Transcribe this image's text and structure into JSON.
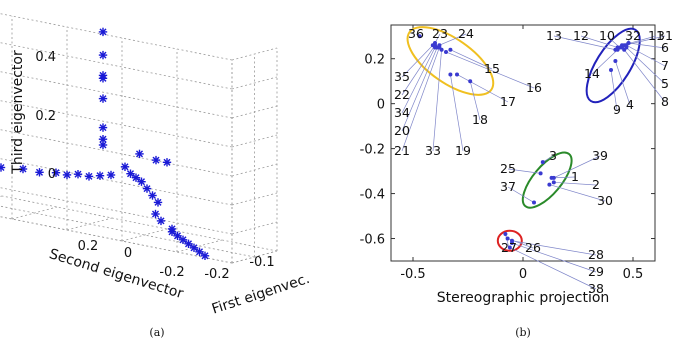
{
  "chart_data": [
    {
      "panel": "(a)",
      "type": "scatter",
      "marker": "star",
      "marker_color": "#1a1ad6",
      "axes": {
        "z_label": "Third eigenvector",
        "y_label": "Second eigenvector",
        "x_label": "First eigenvec.",
        "z_ticks": [
          "0.4",
          "0.2",
          "0"
        ],
        "y_ticks": [
          "0.2",
          "0",
          "-0.2"
        ],
        "x_ticks": [
          "-0.2",
          "-0.1"
        ]
      },
      "grid": true,
      "points": [
        {
          "x": -0.12,
          "y": 0.1,
          "z": 0.45
        },
        {
          "x": -0.12,
          "y": 0.1,
          "z": 0.37
        },
        {
          "x": -0.12,
          "y": 0.1,
          "z": 0.3
        },
        {
          "x": -0.12,
          "y": 0.1,
          "z": 0.29
        },
        {
          "x": -0.12,
          "y": 0.1,
          "z": 0.22
        },
        {
          "x": -0.12,
          "y": 0.1,
          "z": 0.12
        },
        {
          "x": -0.12,
          "y": 0.1,
          "z": 0.08
        },
        {
          "x": -0.12,
          "y": 0.1,
          "z": 0.06
        },
        {
          "x": -0.1,
          "y": 0.05,
          "z": 0.04
        },
        {
          "x": -0.1,
          "y": 0.02,
          "z": 0.03
        },
        {
          "x": -0.1,
          "y": 0.0,
          "z": 0.03
        },
        {
          "x": -0.12,
          "y": 0.06,
          "z": 0.0
        },
        {
          "x": -0.12,
          "y": 0.05,
          "z": -0.02
        },
        {
          "x": -0.12,
          "y": 0.04,
          "z": -0.03
        },
        {
          "x": -0.12,
          "y": 0.03,
          "z": -0.04
        },
        {
          "x": -0.12,
          "y": 0.02,
          "z": -0.06
        },
        {
          "x": -0.12,
          "y": 0.01,
          "z": -0.08
        },
        {
          "x": -0.12,
          "y": 0.0,
          "z": -0.1
        },
        {
          "x": -0.2,
          "y": 0.3,
          "z": -0.05
        },
        {
          "x": -0.2,
          "y": 0.25,
          "z": -0.04
        },
        {
          "x": -0.2,
          "y": 0.22,
          "z": -0.03
        },
        {
          "x": -0.2,
          "y": 0.18,
          "z": -0.02
        },
        {
          "x": -0.2,
          "y": 0.15,
          "z": -0.02
        },
        {
          "x": -0.2,
          "y": 0.12,
          "z": -0.01
        },
        {
          "x": -0.2,
          "y": 0.1,
          "z": -0.01
        },
        {
          "x": -0.2,
          "y": 0.08,
          "z": 0.0
        },
        {
          "x": -0.2,
          "y": 0.06,
          "z": 0.0
        },
        {
          "x": -0.2,
          "y": 0.04,
          "z": 0.01
        },
        {
          "x": -0.2,
          "y": 0.02,
          "z": 0.02
        },
        {
          "x": -0.15,
          "y": -0.02,
          "z": -0.12
        },
        {
          "x": -0.15,
          "y": -0.03,
          "z": -0.14
        },
        {
          "x": -0.15,
          "y": -0.05,
          "z": -0.16
        },
        {
          "x": -0.15,
          "y": -0.05,
          "z": -0.17
        },
        {
          "x": -0.15,
          "y": -0.06,
          "z": -0.18
        },
        {
          "x": -0.15,
          "y": -0.07,
          "z": -0.19
        },
        {
          "x": -0.15,
          "y": -0.08,
          "z": -0.2
        },
        {
          "x": -0.15,
          "y": -0.09,
          "z": -0.21
        },
        {
          "x": -0.15,
          "y": -0.1,
          "z": -0.22
        },
        {
          "x": -0.15,
          "y": -0.11,
          "z": -0.23
        }
      ],
      "caption": "(a)"
    },
    {
      "panel": "(b)",
      "type": "scatter",
      "xlabel": "Stereographic projection",
      "ylabel": "",
      "xlim": [
        -0.6,
        0.6
      ],
      "ylim": [
        -0.7,
        0.35
      ],
      "x_ticks": [
        "-0.5",
        "0",
        "0.5"
      ],
      "y_ticks": [
        "0.2",
        "0",
        "-0.2",
        "-0.4",
        "-0.6"
      ],
      "points": [
        {
          "id": "1",
          "x": 0.13,
          "y": -0.33
        },
        {
          "id": "2",
          "x": 0.14,
          "y": -0.35
        },
        {
          "id": "3",
          "x": 0.09,
          "y": -0.26
        },
        {
          "id": "4",
          "x": 0.42,
          "y": 0.19
        },
        {
          "id": "5",
          "x": 0.47,
          "y": 0.25
        },
        {
          "id": "6",
          "x": 0.48,
          "y": 0.27
        },
        {
          "id": "7",
          "x": 0.47,
          "y": 0.26
        },
        {
          "id": "8",
          "x": 0.46,
          "y": 0.24
        },
        {
          "id": "9",
          "x": 0.4,
          "y": 0.15
        },
        {
          "id": "10",
          "x": 0.44,
          "y": 0.25
        },
        {
          "id": "11",
          "x": 0.45,
          "y": 0.26
        },
        {
          "id": "12",
          "x": 0.43,
          "y": 0.25
        },
        {
          "id": "13",
          "x": 0.42,
          "y": 0.24
        },
        {
          "id": "14",
          "x": 0.43,
          "y": 0.24
        },
        {
          "id": "15",
          "x": -0.33,
          "y": 0.24
        },
        {
          "id": "16",
          "x": -0.35,
          "y": 0.23
        },
        {
          "id": "17",
          "x": -0.3,
          "y": 0.13
        },
        {
          "id": "18",
          "x": -0.24,
          "y": 0.1
        },
        {
          "id": "19",
          "x": -0.33,
          "y": 0.13
        },
        {
          "id": "20",
          "x": -0.39,
          "y": 0.25
        },
        {
          "id": "21",
          "x": -0.38,
          "y": 0.25
        },
        {
          "id": "22",
          "x": -0.4,
          "y": 0.26
        },
        {
          "id": "23",
          "x": -0.4,
          "y": 0.27
        },
        {
          "id": "24",
          "x": -0.38,
          "y": 0.26
        },
        {
          "id": "25",
          "x": 0.08,
          "y": -0.31
        },
        {
          "id": "26",
          "x": -0.07,
          "y": -0.6
        },
        {
          "id": "27",
          "x": -0.08,
          "y": -0.58
        },
        {
          "id": "28",
          "x": -0.05,
          "y": -0.61
        },
        {
          "id": "29",
          "x": -0.05,
          "y": -0.62
        },
        {
          "id": "30",
          "x": 0.12,
          "y": -0.36
        },
        {
          "id": "31",
          "x": 0.46,
          "y": 0.26
        },
        {
          "id": "32",
          "x": 0.45,
          "y": 0.25
        },
        {
          "id": "33",
          "x": -0.37,
          "y": 0.24
        },
        {
          "id": "34",
          "x": -0.4,
          "y": 0.25
        },
        {
          "id": "35",
          "x": -0.41,
          "y": 0.26
        },
        {
          "id": "36",
          "x": -0.47,
          "y": 0.3
        },
        {
          "id": "37",
          "x": 0.05,
          "y": -0.44
        },
        {
          "id": "38",
          "x": -0.06,
          "y": -0.64
        },
        {
          "id": "39",
          "x": 0.14,
          "y": -0.33
        }
      ],
      "clusters": [
        {
          "color": "#f0c020",
          "members": [
            "15",
            "16",
            "17",
            "18",
            "19",
            "20",
            "21",
            "22",
            "23",
            "24",
            "33",
            "34",
            "35",
            "36"
          ]
        },
        {
          "color": "#2222bb",
          "members": [
            "4",
            "5",
            "6",
            "7",
            "8",
            "9",
            "10",
            "11",
            "12",
            "13",
            "14",
            "31",
            "32"
          ]
        },
        {
          "color": "#2a8a2a",
          "members": [
            "1",
            "2",
            "3",
            "25",
            "30",
            "37",
            "39"
          ]
        },
        {
          "color": "#dd2222",
          "members": [
            "26",
            "27",
            "28",
            "29",
            "38"
          ]
        }
      ],
      "caption": "(b)"
    }
  ]
}
